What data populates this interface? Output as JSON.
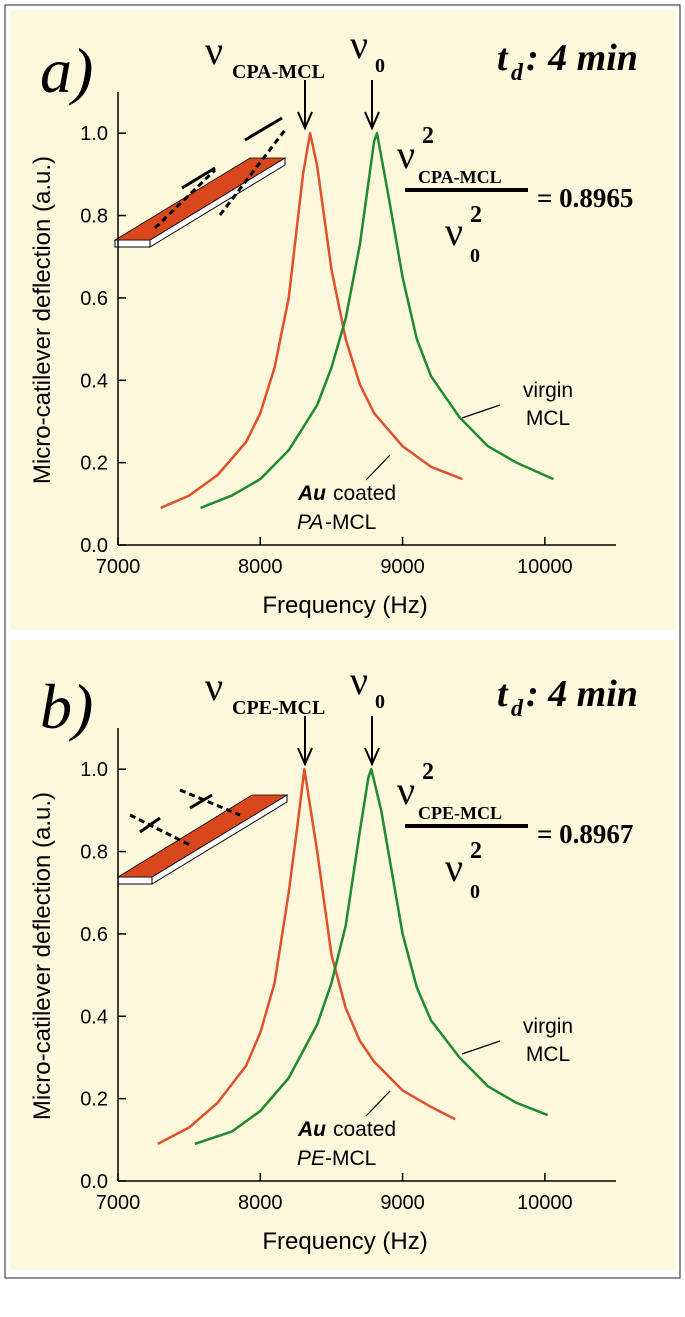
{
  "chart_data": [
    {
      "type": "line",
      "panel_label": "a)",
      "title": "t",
      "title_subscript": "d",
      "title_suffix": ": 4 min",
      "xlabel": "Frequency (Hz)",
      "ylabel": "Micro-catilever deflection (a.u.)",
      "annotations": {
        "shifted_symbol": "ν",
        "shifted_subscript": "CPA-MCL",
        "ref_symbol": "ν",
        "ref_subscript": "0",
        "ratio_numerator_symbol": "ν",
        "ratio_numerator_power": "2",
        "ratio_numerator_subscript": "CPA-MCL",
        "ratio_denominator_symbol": "ν",
        "ratio_denominator_power": "2",
        "ratio_denominator_subscript": "0",
        "ratio_value": "= 0.8965"
      },
      "xlim": [
        7000,
        10500
      ],
      "xticks": [
        7000,
        8000,
        9000,
        10000
      ],
      "ylim": [
        0,
        1.1
      ],
      "yticks": [
        {
          "value": 0,
          "label": "0.0"
        },
        {
          "value": 0.2,
          "label": "0.2"
        },
        {
          "value": 0.4,
          "label": "0.4"
        },
        {
          "value": 0.6,
          "label": "0.6"
        },
        {
          "value": 0.8,
          "label": "0.8"
        },
        {
          "value": 1,
          "label": "1.0"
        }
      ],
      "series": [
        {
          "name": [
            "Au",
            "coated",
            "PA",
            "-MCL"
          ],
          "color": "#e0502a",
          "x": [
            7300,
            7500,
            7700,
            7900,
            8000,
            8100,
            8200,
            8300,
            8350,
            8400,
            8500,
            8600,
            8700,
            8800,
            9000,
            9200,
            9420
          ],
          "values": [
            0.09,
            0.12,
            0.17,
            0.25,
            0.32,
            0.43,
            0.6,
            0.9,
            1.0,
            0.92,
            0.67,
            0.5,
            0.39,
            0.32,
            0.24,
            0.19,
            0.16
          ]
        },
        {
          "name": [
            "virgin",
            "MCL"
          ],
          "color": "#1f8a2e",
          "x": [
            7580,
            7800,
            8000,
            8200,
            8400,
            8500,
            8600,
            8700,
            8800,
            8820,
            8900,
            9000,
            9100,
            9200,
            9400,
            9600,
            9800,
            10060
          ],
          "values": [
            0.09,
            0.12,
            0.16,
            0.23,
            0.34,
            0.43,
            0.55,
            0.73,
            0.98,
            1.0,
            0.85,
            0.65,
            0.5,
            0.41,
            0.31,
            0.24,
            0.2,
            0.16
          ]
        }
      ]
    },
    {
      "type": "line",
      "panel_label": "b)",
      "title": "t",
      "title_subscript": "d",
      "title_suffix": ": 4 min",
      "xlabel": "Frequency (Hz)",
      "ylabel": "Micro-catilever deflection (a.u.)",
      "annotations": {
        "shifted_symbol": "ν",
        "shifted_subscript": "CPE-MCL",
        "ref_symbol": "ν",
        "ref_subscript": "0",
        "ratio_numerator_symbol": "ν",
        "ratio_numerator_power": "2",
        "ratio_numerator_subscript": "CPE-MCL",
        "ratio_denominator_symbol": "ν",
        "ratio_denominator_power": "2",
        "ratio_denominator_subscript": "0",
        "ratio_value": "= 0.8967"
      },
      "xlim": [
        7000,
        10500
      ],
      "xticks": [
        7000,
        8000,
        9000,
        10000
      ],
      "ylim": [
        0,
        1.1
      ],
      "yticks": [
        {
          "value": 0,
          "label": "0.0"
        },
        {
          "value": 0.2,
          "label": "0.2"
        },
        {
          "value": 0.4,
          "label": "0.4"
        },
        {
          "value": 0.6,
          "label": "0.6"
        },
        {
          "value": 0.8,
          "label": "0.8"
        },
        {
          "value": 1,
          "label": "1.0"
        }
      ],
      "series": [
        {
          "name": [
            "Au",
            "coated",
            "PE",
            "-MCL"
          ],
          "color": "#e0502a",
          "x": [
            7280,
            7500,
            7700,
            7900,
            8000,
            8100,
            8200,
            8260,
            8310,
            8400,
            8500,
            8600,
            8700,
            8800,
            9000,
            9200,
            9370
          ],
          "values": [
            0.09,
            0.13,
            0.19,
            0.28,
            0.36,
            0.48,
            0.7,
            0.86,
            1.0,
            0.8,
            0.55,
            0.42,
            0.34,
            0.29,
            0.22,
            0.18,
            0.15
          ]
        },
        {
          "name": [
            "virgin",
            "MCL"
          ],
          "color": "#1f8a2e",
          "x": [
            7540,
            7800,
            8000,
            8200,
            8400,
            8500,
            8600,
            8700,
            8760,
            8780,
            8850,
            9000,
            9100,
            9200,
            9400,
            9600,
            9800,
            10020
          ],
          "values": [
            0.09,
            0.12,
            0.17,
            0.25,
            0.38,
            0.48,
            0.62,
            0.85,
            0.98,
            1.0,
            0.9,
            0.6,
            0.47,
            0.39,
            0.3,
            0.23,
            0.19,
            0.16
          ]
        }
      ]
    }
  ]
}
